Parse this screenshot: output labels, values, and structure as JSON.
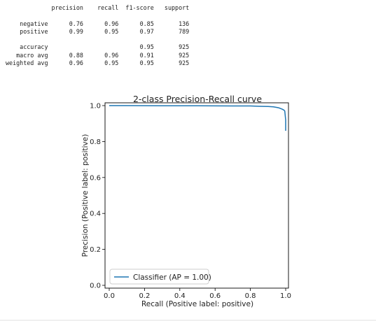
{
  "report": {
    "headers": [
      "precision",
      "recall",
      "f1-score",
      "support"
    ],
    "rows": [
      {
        "label": "negative",
        "values": [
          "0.76",
          "0.96",
          "0.85",
          "136"
        ]
      },
      {
        "label": "positive",
        "values": [
          "0.99",
          "0.95",
          "0.97",
          "789"
        ]
      },
      {
        "label": "",
        "values": [
          "",
          "",
          "",
          ""
        ]
      },
      {
        "label": "accuracy",
        "values": [
          "",
          "",
          "0.95",
          "925"
        ]
      },
      {
        "label": "macro avg",
        "values": [
          "0.88",
          "0.96",
          "0.91",
          "925"
        ]
      },
      {
        "label": "weighted avg",
        "values": [
          "0.96",
          "0.95",
          "0.95",
          "925"
        ]
      }
    ]
  },
  "chart_data": {
    "type": "line",
    "title": "2-class Precision-Recall curve",
    "xlabel": "Recall (Positive label: positive)",
    "ylabel": "Precision (Positive label: positive)",
    "xlim": [
      0.0,
      1.0
    ],
    "ylim": [
      0.0,
      1.0
    ],
    "xticks": [
      "0.0",
      "0.2",
      "0.4",
      "0.6",
      "0.8",
      "1.0"
    ],
    "yticks": [
      "0.0",
      "0.2",
      "0.4",
      "0.6",
      "0.8",
      "1.0"
    ],
    "grid": false,
    "legend": {
      "location": "lower left",
      "entries": [
        "Classifier (AP = 1.00)"
      ]
    },
    "series": [
      {
        "name": "Classifier (AP = 1.00)",
        "color": "#1f77b4",
        "x": [
          0.0,
          0.1,
          0.3,
          0.5,
          0.7,
          0.8,
          0.85,
          0.9,
          0.93,
          0.95,
          0.96,
          0.97,
          0.98,
          0.99,
          0.995,
          1.0,
          1.0
        ],
        "y": [
          1.0,
          1.0,
          0.999,
          0.999,
          0.998,
          0.998,
          0.996,
          0.995,
          0.993,
          0.99,
          0.988,
          0.984,
          0.98,
          0.975,
          0.97,
          0.92,
          0.86
        ]
      }
    ]
  }
}
